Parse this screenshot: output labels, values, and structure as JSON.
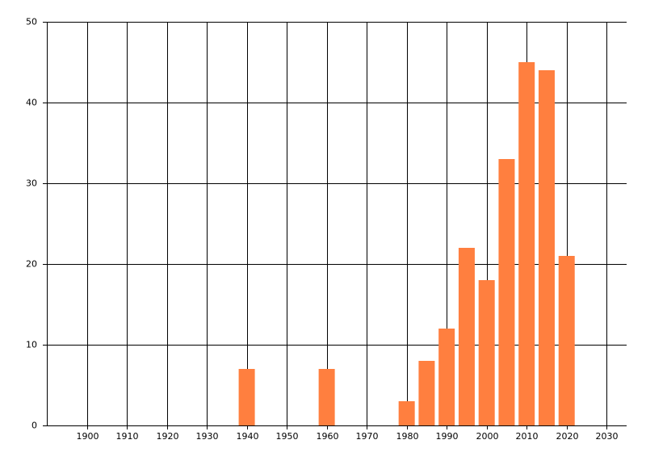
{
  "chart_data": {
    "type": "bar",
    "x": [
      1940,
      1960,
      1980,
      1985,
      1990,
      1995,
      2000,
      2005,
      2010,
      2015,
      2020
    ],
    "values": [
      7,
      7,
      3,
      8,
      12,
      22,
      18,
      33,
      45,
      44,
      21
    ],
    "color": "#ff7f3f",
    "xlim": [
      1890,
      2035
    ],
    "xticks": [
      1900,
      1910,
      1920,
      1930,
      1940,
      1950,
      1960,
      1970,
      1980,
      1990,
      2000,
      2010,
      2020,
      2030
    ],
    "ylim": [
      0,
      50
    ],
    "yticks": [
      0,
      10,
      20,
      30,
      40,
      50
    ],
    "grid": true
  }
}
